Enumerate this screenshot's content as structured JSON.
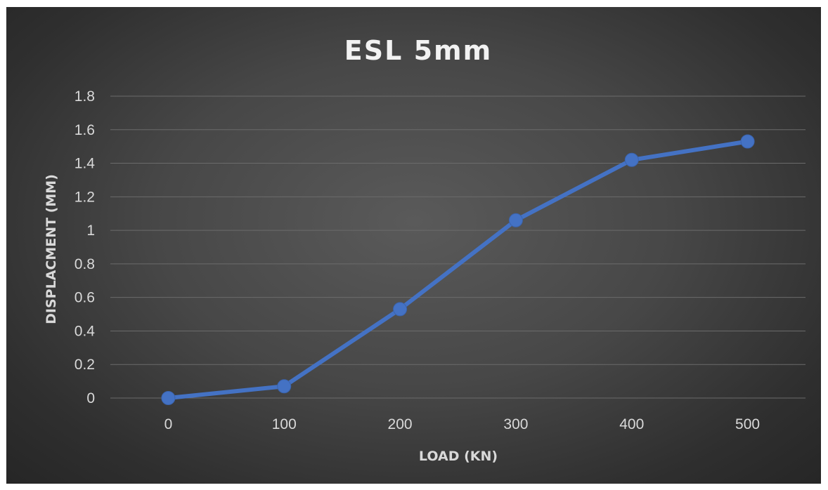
{
  "chart_data": {
    "type": "line",
    "title": "ESL 5mm",
    "xlabel": "LOAD (KN)",
    "ylabel": "DISPLACMENT (MM)",
    "categories": [
      "0",
      "100",
      "200",
      "300",
      "400",
      "500"
    ],
    "x": [
      0,
      100,
      200,
      300,
      400,
      500
    ],
    "y_ticks": [
      "0",
      "0.2",
      "0.4",
      "0.6",
      "0.8",
      "1",
      "1.2",
      "1.4",
      "1.6",
      "1.8"
    ],
    "ylim": [
      0,
      1.8
    ],
    "grid": true,
    "legend": "none",
    "series": [
      {
        "values": [
          0,
          0.07,
          0.53,
          1.06,
          1.42,
          1.53
        ],
        "color": "#4472c4"
      }
    ]
  }
}
